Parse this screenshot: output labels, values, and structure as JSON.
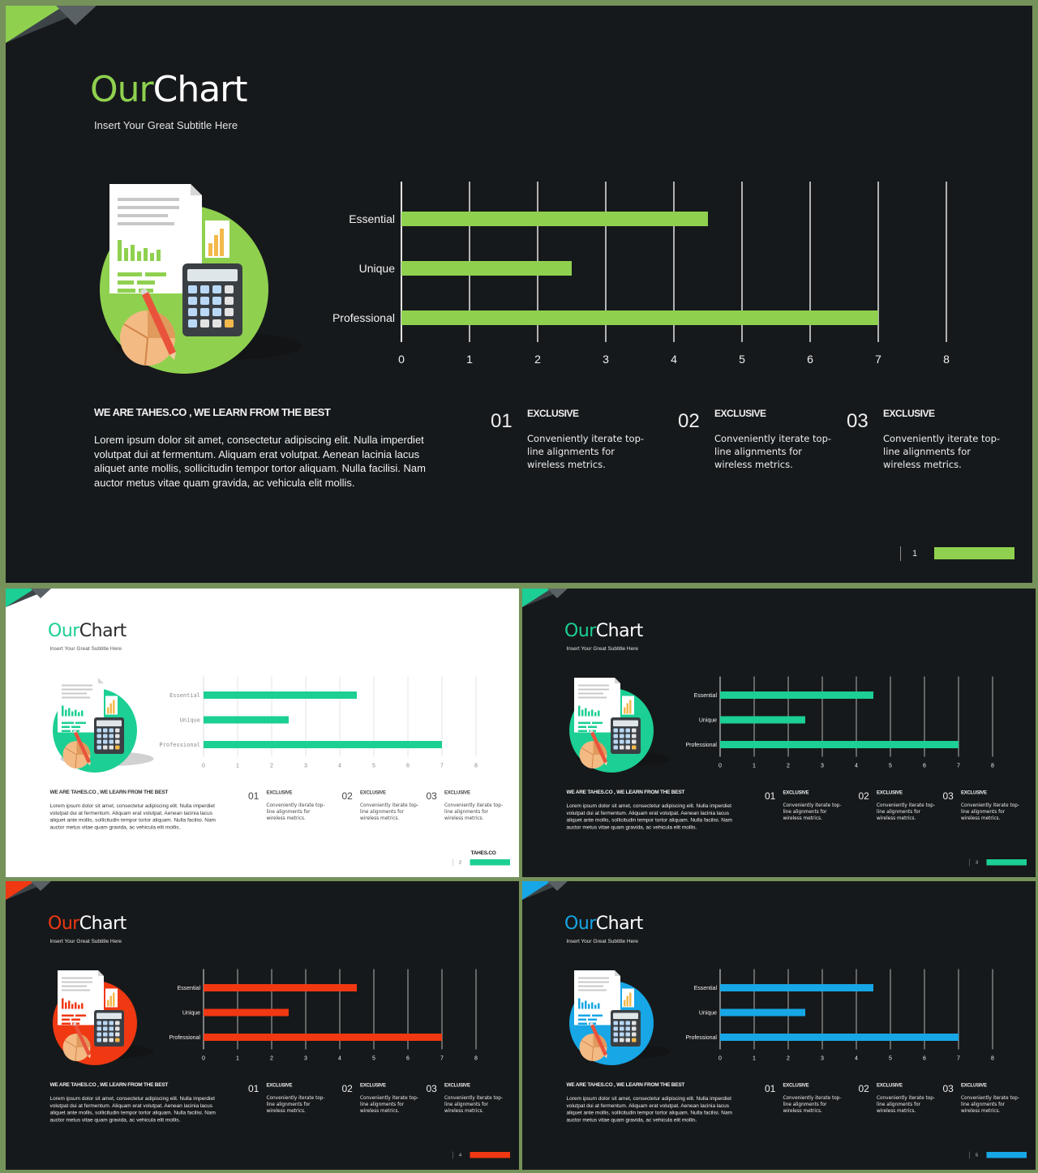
{
  "slides": [
    {
      "variant": "dark",
      "accent": "#8fd14f",
      "page": "1",
      "show_brand": false
    },
    {
      "variant": "light",
      "accent": "#1ccf94",
      "page": "2",
      "show_brand": true
    },
    {
      "variant": "dark",
      "accent": "#1ccf94",
      "page": "3",
      "show_brand": false
    },
    {
      "variant": "dark",
      "accent": "#f03812",
      "page": "4",
      "show_brand": false
    },
    {
      "variant": "dark",
      "accent": "#17a6e6",
      "page": "5",
      "show_brand": false
    }
  ],
  "content": {
    "title_word1": "Our",
    "title_word2": "Chart",
    "subtitle": "Insert Your Great Subtitle Here",
    "about_heading": "WE ARE TAHES.CO ,  WE LEARN FROM THE BEST",
    "about_body": "Lorem ipsum dolor sit amet, consectetur adipiscing elit. Nulla imperdiet volutpat dui at fermentum. Aliquam erat volutpat. Aenean lacinia lacus aliquet ante mollis, sollicitudin tempor tortor aliquam. Nulla facilisi.  Nam auctor metus vitae quam gravida, ac vehicula elit mollis.",
    "features": [
      {
        "num": "01",
        "heading": "EXCLUSIVE",
        "text": "Conveniently iterate top-line alignments for wireless  metrics."
      },
      {
        "num": "02",
        "heading": "EXCLUSIVE",
        "text": "Conveniently iterate top-line alignments for wireless  metrics."
      },
      {
        "num": "03",
        "heading": "EXCLUSIVE",
        "text": "Conveniently iterate top-line alignments for wireless  metrics."
      }
    ],
    "brand": "TAHES.CO",
    "icons": [
      "document-icon",
      "calculator-icon",
      "pencil-icon",
      "pie-chart-icon"
    ]
  },
  "chart_data": {
    "type": "bar",
    "orientation": "horizontal",
    "categories": [
      "Essential",
      "Unique",
      "Professional"
    ],
    "values": [
      4.5,
      2.5,
      7
    ],
    "xlim": [
      0,
      8
    ],
    "xticks": [
      0,
      1,
      2,
      3,
      4,
      5,
      6,
      7,
      8
    ],
    "grid": true,
    "title": "",
    "xlabel": "",
    "ylabel": ""
  }
}
